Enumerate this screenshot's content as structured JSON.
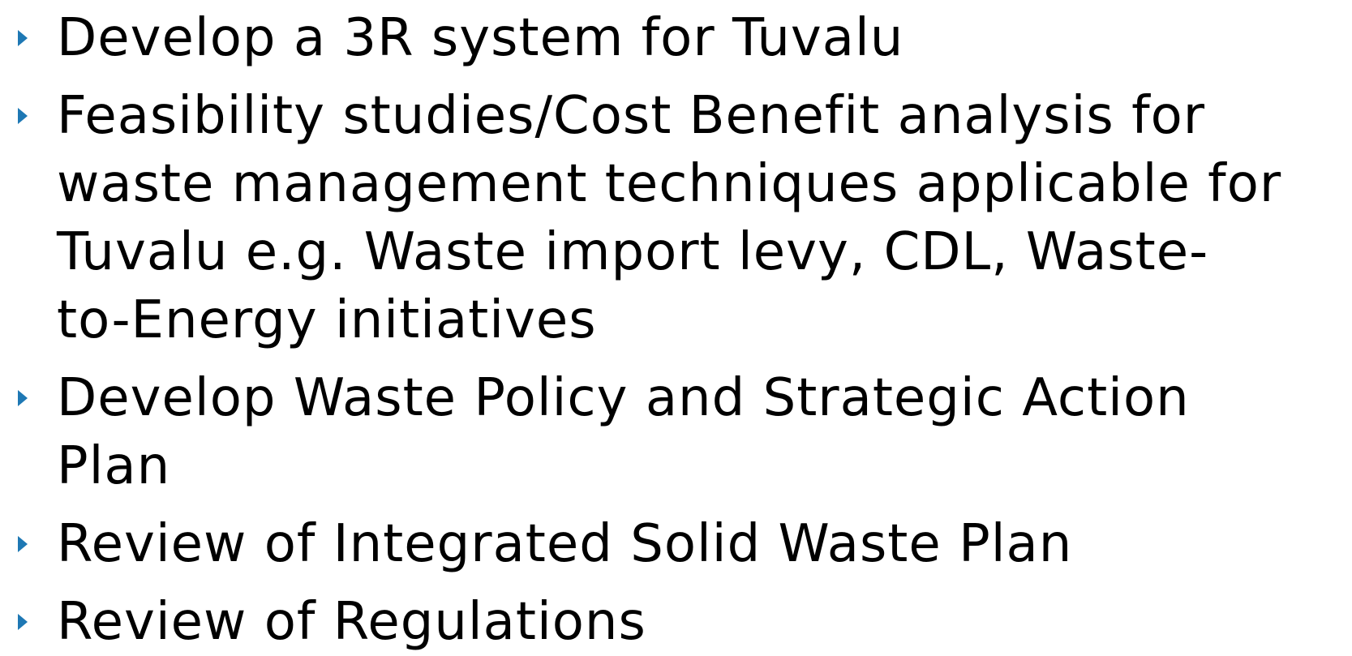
{
  "bullets": [
    [
      "Develop a 3R system for Tuvalu"
    ],
    [
      "Feasibility studies/Cost Benefit analysis for",
      "waste management techniques applicable for",
      "Tuvalu e.g. Waste import levy, CDL, Waste-",
      "to-Energy initiatives"
    ],
    [
      "Develop Waste Policy and Strategic Action",
      "Plan"
    ],
    [
      "Review of Integrated Solid Waste Plan"
    ],
    [
      "Review of Regulations"
    ]
  ]
}
